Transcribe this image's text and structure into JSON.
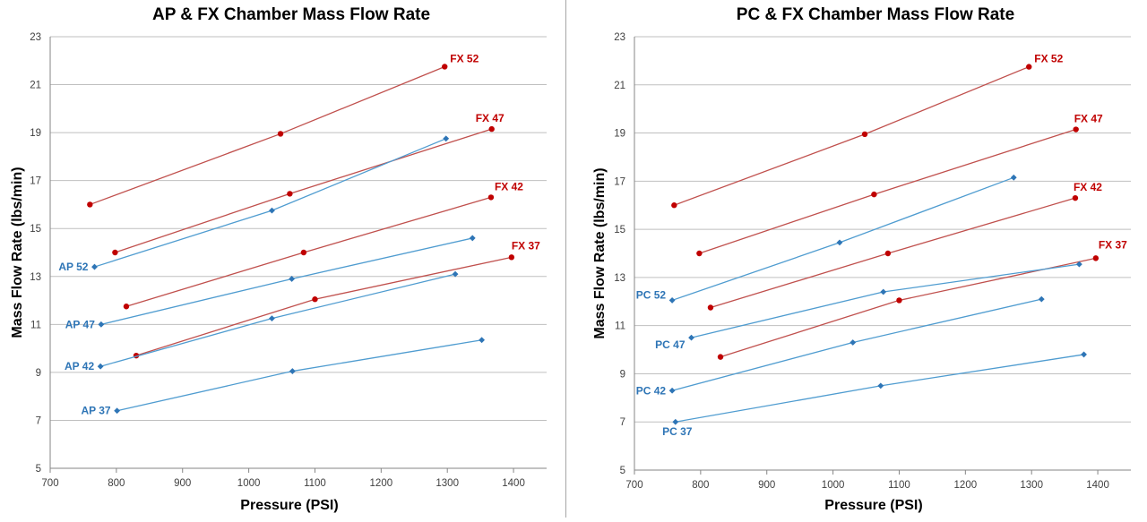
{
  "colors": {
    "fx": "#c0504d",
    "fx_label": "#c00000",
    "ap": "#4f9cd0",
    "ap_marker": "#2e75b6",
    "ap_label": "#2e75b6",
    "grid": "#bfbfbf"
  },
  "chart_data": [
    {
      "type": "scatter",
      "title": "AP & FX Chamber Mass Flow Rate",
      "xlabel": "Pressure (PSI)",
      "ylabel": "Mass Flow Rate (lbs/min)",
      "xlim": [
        700,
        1450
      ],
      "ylim": [
        5,
        23
      ],
      "xticks": [
        700,
        800,
        900,
        1000,
        1100,
        1200,
        1300,
        1400
      ],
      "yticks": [
        5,
        7,
        9,
        11,
        13,
        15,
        17,
        19,
        21,
        23
      ],
      "grid": true,
      "series": [
        {
          "name": "FX 52",
          "group": "fx",
          "marker": "circle",
          "x": [
            760,
            1048,
            1296
          ],
          "y": [
            16.0,
            18.95,
            21.75
          ]
        },
        {
          "name": "FX 47",
          "group": "fx",
          "marker": "circle",
          "x": [
            798,
            1062,
            1367
          ],
          "y": [
            14.0,
            16.45,
            19.15
          ]
        },
        {
          "name": "FX 42",
          "group": "fx",
          "marker": "circle",
          "x": [
            815,
            1083,
            1366
          ],
          "y": [
            11.75,
            14.0,
            16.3
          ]
        },
        {
          "name": "FX 37",
          "group": "fx",
          "marker": "circle",
          "x": [
            830,
            1100,
            1397
          ],
          "y": [
            9.7,
            12.05,
            13.8
          ]
        },
        {
          "name": "AP 52",
          "group": "ap",
          "marker": "diamond",
          "x": [
            767,
            1035,
            1298
          ],
          "y": [
            13.4,
            15.75,
            18.75
          ]
        },
        {
          "name": "AP 47",
          "group": "ap",
          "marker": "diamond",
          "x": [
            777,
            1065,
            1338
          ],
          "y": [
            11.0,
            12.9,
            14.6
          ]
        },
        {
          "name": "AP 42",
          "group": "ap",
          "marker": "diamond",
          "x": [
            776,
            1035,
            1312
          ],
          "y": [
            9.25,
            11.25,
            13.1
          ]
        },
        {
          "name": "AP 37",
          "group": "ap",
          "marker": "diamond",
          "x": [
            801,
            1066,
            1352
          ],
          "y": [
            7.4,
            9.05,
            10.35
          ]
        }
      ]
    },
    {
      "type": "scatter",
      "title": "PC & FX Chamber Mass Flow Rate",
      "xlabel": "Pressure (PSI)",
      "ylabel": "Mass Flow Rate (lbs/min)",
      "xlim": [
        700,
        1450
      ],
      "ylim": [
        5,
        23
      ],
      "xticks": [
        700,
        800,
        900,
        1000,
        1100,
        1200,
        1300,
        1400
      ],
      "yticks": [
        5,
        7,
        9,
        11,
        13,
        15,
        17,
        19,
        21,
        23
      ],
      "grid": true,
      "series": [
        {
          "name": "FX 52",
          "group": "fx",
          "marker": "circle",
          "x": [
            760,
            1048,
            1296
          ],
          "y": [
            16.0,
            18.95,
            21.75
          ]
        },
        {
          "name": "FX 47",
          "group": "fx",
          "marker": "circle",
          "x": [
            798,
            1062,
            1367
          ],
          "y": [
            14.0,
            16.45,
            19.15
          ]
        },
        {
          "name": "FX 42",
          "group": "fx",
          "marker": "circle",
          "x": [
            815,
            1083,
            1366
          ],
          "y": [
            11.75,
            14.0,
            16.3
          ]
        },
        {
          "name": "FX 37",
          "group": "fx",
          "marker": "circle",
          "x": [
            830,
            1100,
            1397
          ],
          "y": [
            9.7,
            12.05,
            13.8
          ]
        },
        {
          "name": "PC 52",
          "group": "ap",
          "marker": "diamond",
          "x": [
            757,
            1010,
            1273
          ],
          "y": [
            12.05,
            14.45,
            17.15
          ]
        },
        {
          "name": "PC 47",
          "group": "ap",
          "marker": "diamond",
          "x": [
            786,
            1076,
            1372
          ],
          "y": [
            10.5,
            12.4,
            13.55
          ]
        },
        {
          "name": "PC 42",
          "group": "ap",
          "marker": "diamond",
          "x": [
            757,
            1030,
            1315
          ],
          "y": [
            8.3,
            10.3,
            12.1
          ]
        },
        {
          "name": "PC 37",
          "group": "ap",
          "marker": "diamond",
          "x": [
            762,
            1072,
            1379
          ],
          "y": [
            7.0,
            8.5,
            9.8
          ]
        }
      ]
    }
  ]
}
